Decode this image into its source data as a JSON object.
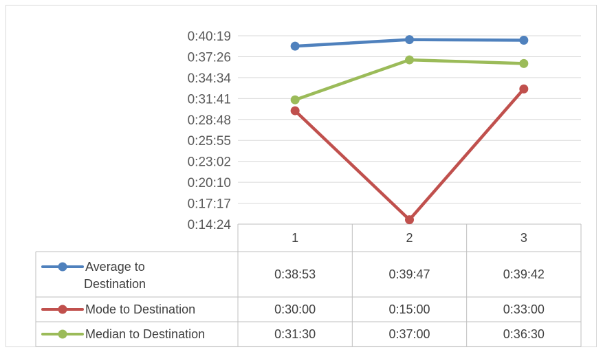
{
  "chart_data": {
    "type": "line",
    "categories": [
      "1",
      "2",
      "3"
    ],
    "y_tick_labels": [
      "0:40:19",
      "0:37:26",
      "0:34:34",
      "0:31:41",
      "0:28:48",
      "0:25:55",
      "0:23:02",
      "0:20:10",
      "0:17:17",
      "0:14:24"
    ],
    "ylim_seconds": [
      864,
      2419
    ],
    "grid": true,
    "legend": "data-table",
    "series": [
      {
        "name_lines": [
          "Average to",
          "Destination"
        ],
        "color": "#4f81bd",
        "values_seconds": [
          2333,
          2387,
          2382
        ],
        "values_label": [
          "0:38:53",
          "0:39:47",
          "0:39:42"
        ]
      },
      {
        "name_lines": [
          "Mode to Destination"
        ],
        "color": "#c0504d",
        "values_seconds": [
          1800,
          900,
          1980
        ],
        "values_label": [
          "0:30:00",
          "0:15:00",
          "0:33:00"
        ]
      },
      {
        "name_lines": [
          "Median to Destination"
        ],
        "color": "#9bbb59",
        "values_seconds": [
          1890,
          2220,
          2190
        ],
        "values_label": [
          "0:31:30",
          "0:37:00",
          "0:36:30"
        ]
      }
    ]
  }
}
